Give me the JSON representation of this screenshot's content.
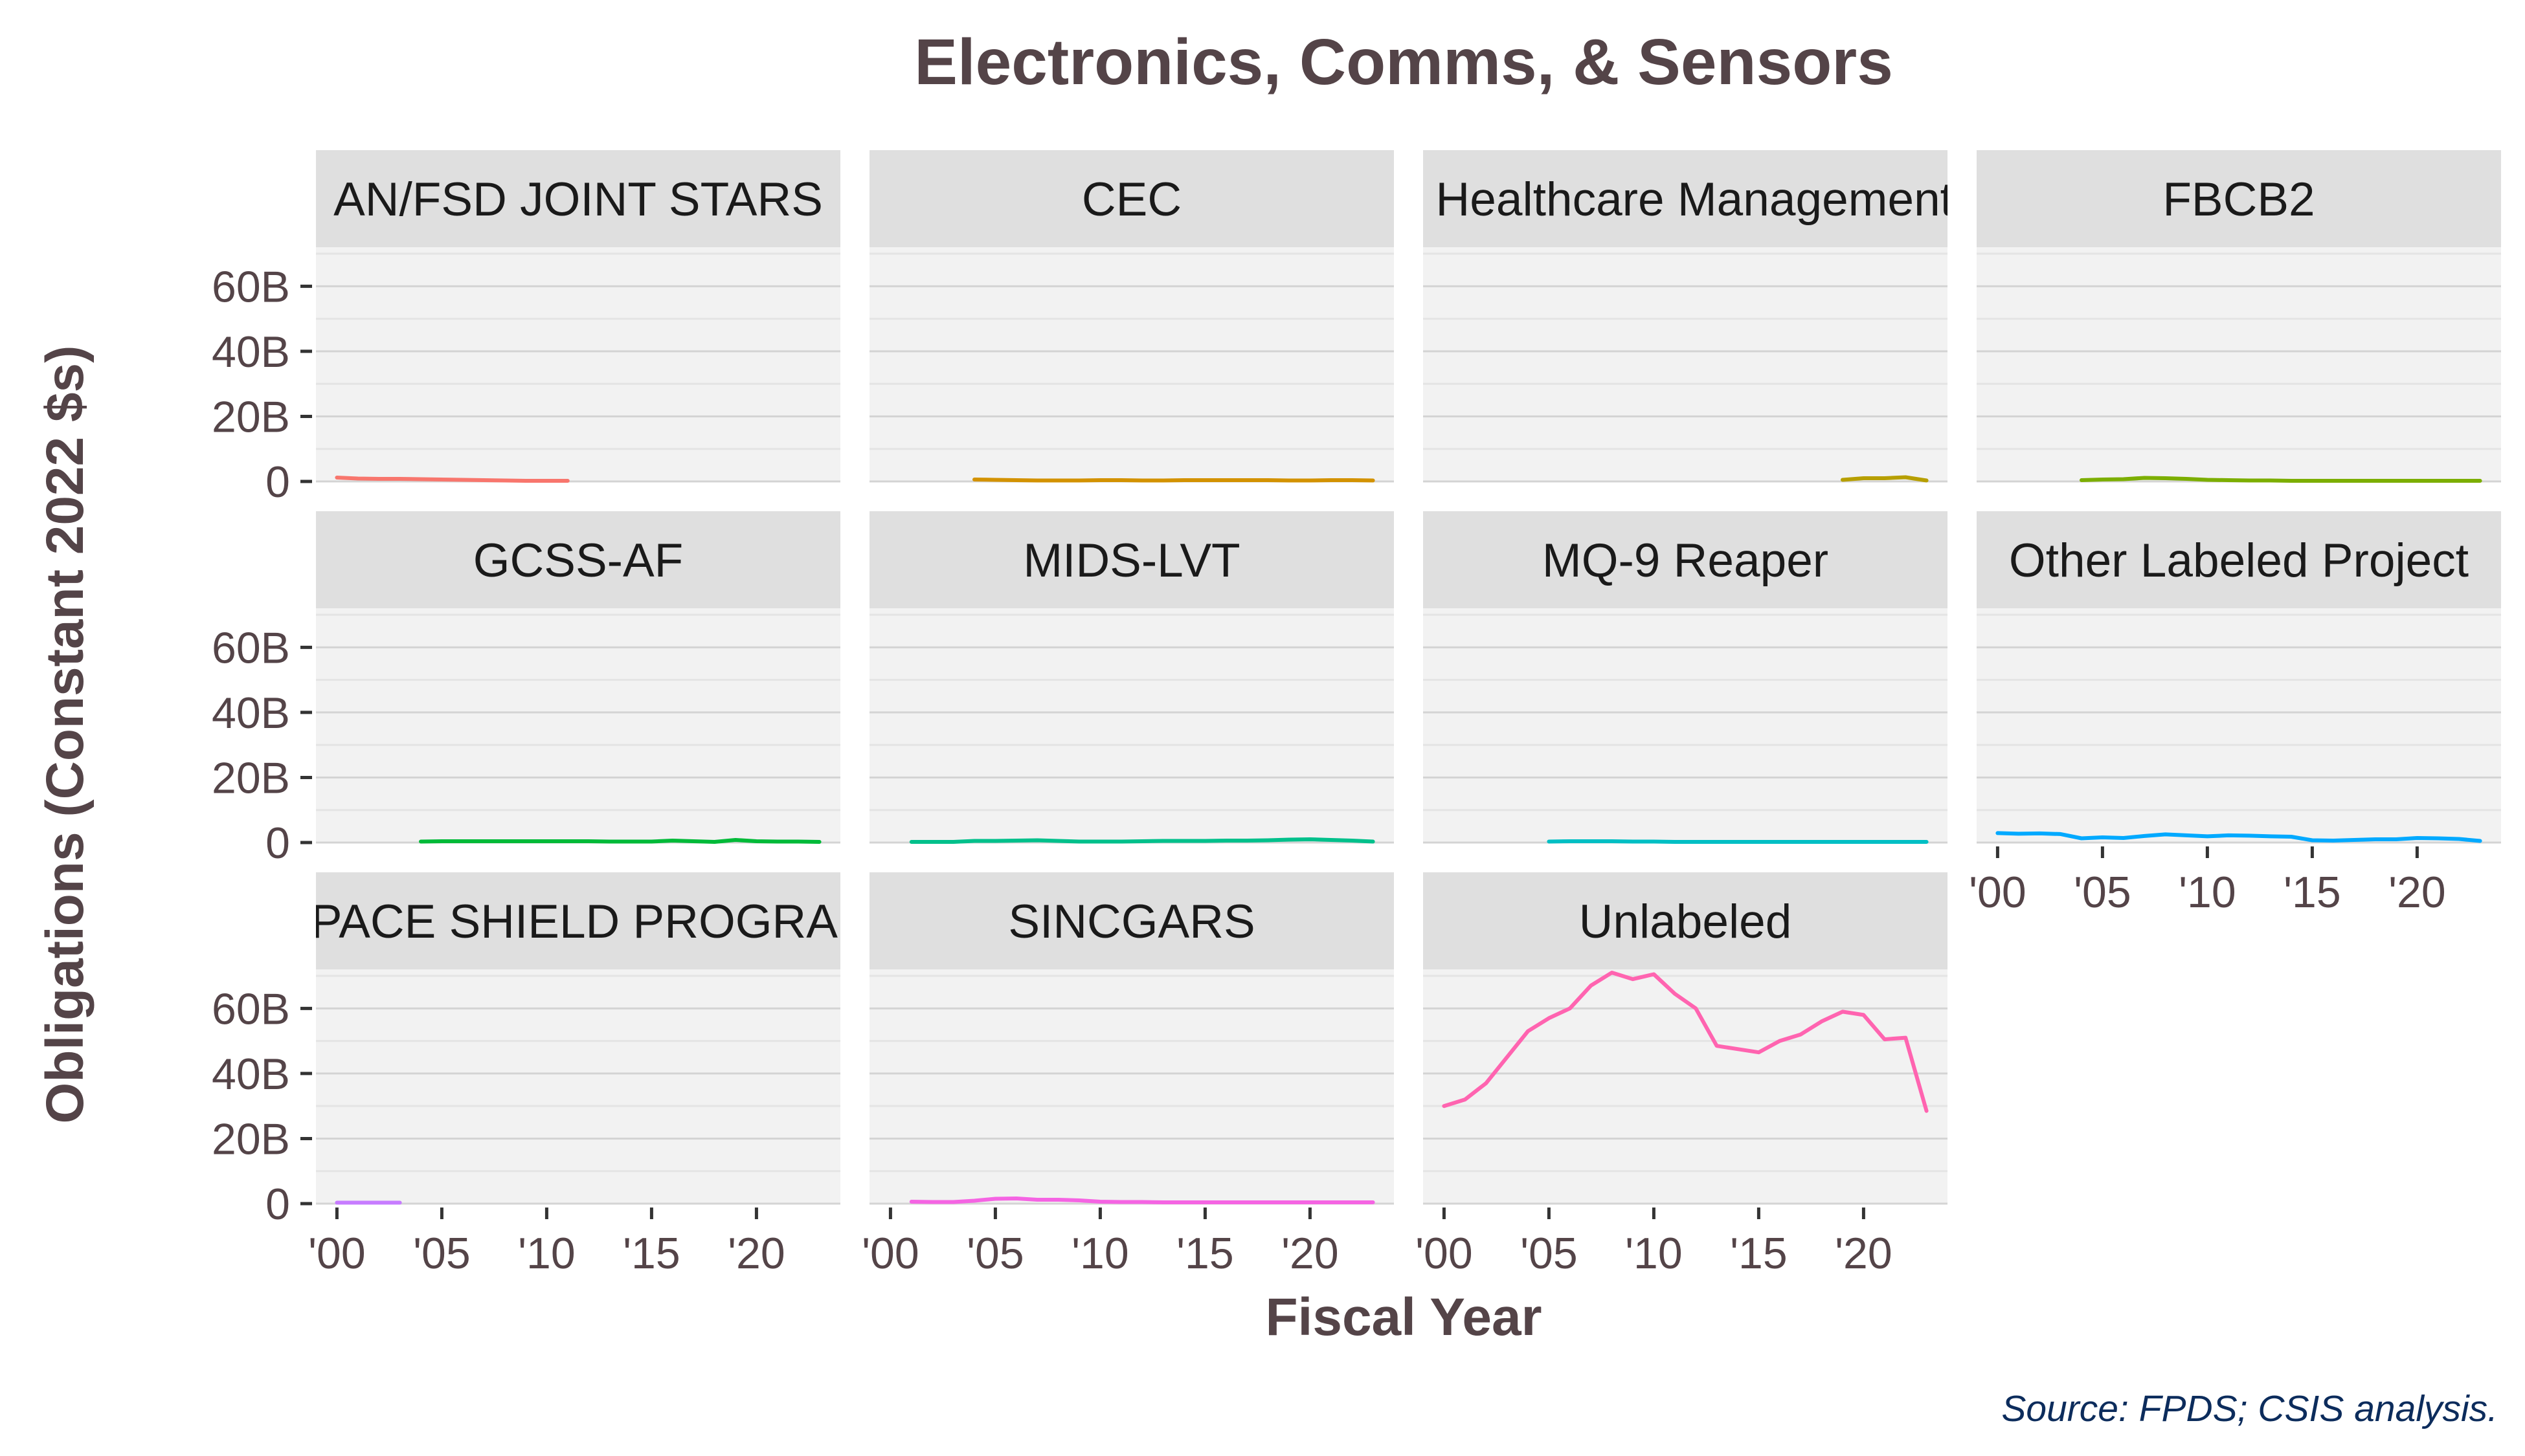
{
  "chart_data": {
    "type": "line",
    "title": "Electronics, Comms, & Sensors",
    "xlabel": "Fiscal Year",
    "ylabel": "Obligations (Constant 2022 $s)",
    "source": "Source: FPDS; CSIS analysis.",
    "xlim": [
      1999,
      2024
    ],
    "ylim": [
      0,
      72
    ],
    "y_ticks": [
      0,
      20,
      40,
      60
    ],
    "y_tick_labels": [
      "0",
      "20B",
      "40B",
      "60B"
    ],
    "x_ticks": [
      2000,
      2005,
      2010,
      2015,
      2020
    ],
    "x_tick_labels": [
      "'00",
      "'05",
      "'10",
      "'15",
      "'20"
    ],
    "layout": "facet-wrap, 4 columns, free x axis",
    "grid": true,
    "legend": "none",
    "panels": [
      {
        "label": "AN/FSD JOINT STARS",
        "color": "#F8766D",
        "x": [
          2000,
          2001,
          2002,
          2003,
          2004,
          2005,
          2006,
          2007,
          2008,
          2009,
          2010,
          2011
        ],
        "y": [
          1.2,
          0.9,
          0.8,
          0.8,
          0.7,
          0.6,
          0.5,
          0.4,
          0.3,
          0.2,
          0.2,
          0.2
        ]
      },
      {
        "label": "CEC",
        "color": "#D39200",
        "x": [
          2004,
          2005,
          2006,
          2007,
          2008,
          2009,
          2010,
          2011,
          2012,
          2013,
          2014,
          2015,
          2016,
          2017,
          2018,
          2019,
          2020,
          2021,
          2022,
          2023
        ],
        "y": [
          0.6,
          0.5,
          0.4,
          0.3,
          0.3,
          0.3,
          0.4,
          0.4,
          0.3,
          0.3,
          0.4,
          0.4,
          0.4,
          0.4,
          0.4,
          0.3,
          0.3,
          0.4,
          0.4,
          0.3
        ]
      },
      {
        "label": "Defense Healthcare Management System",
        "color": "#B79F00",
        "x": [
          2019,
          2020,
          2021,
          2022,
          2023
        ],
        "y": [
          0.5,
          1.0,
          1.0,
          1.3,
          0.3
        ]
      },
      {
        "label": "FBCB2",
        "color": "#7CAE00",
        "x": [
          2004,
          2005,
          2006,
          2007,
          2008,
          2009,
          2010,
          2011,
          2012,
          2013,
          2014,
          2015,
          2016,
          2017,
          2018,
          2019,
          2020,
          2021,
          2022,
          2023
        ],
        "y": [
          0.4,
          0.6,
          0.7,
          1.1,
          1.0,
          0.8,
          0.5,
          0.4,
          0.3,
          0.3,
          0.2,
          0.2,
          0.2,
          0.2,
          0.2,
          0.2,
          0.2,
          0.2,
          0.2,
          0.2
        ]
      },
      {
        "label": "GCSS-AF",
        "color": "#00BA38",
        "x": [
          2004,
          2005,
          2006,
          2007,
          2008,
          2009,
          2010,
          2011,
          2012,
          2013,
          2014,
          2015,
          2016,
          2017,
          2018,
          2019,
          2020,
          2021,
          2022,
          2023
        ],
        "y": [
          0.3,
          0.4,
          0.4,
          0.4,
          0.4,
          0.4,
          0.4,
          0.4,
          0.4,
          0.3,
          0.3,
          0.3,
          0.6,
          0.4,
          0.2,
          0.8,
          0.4,
          0.3,
          0.3,
          0.2
        ]
      },
      {
        "label": "MIDS-LVT",
        "color": "#00C08B",
        "x": [
          2001,
          2002,
          2003,
          2004,
          2005,
          2006,
          2007,
          2008,
          2009,
          2010,
          2011,
          2012,
          2013,
          2014,
          2015,
          2016,
          2017,
          2018,
          2019,
          2020,
          2021,
          2022,
          2023
        ],
        "y": [
          0.2,
          0.2,
          0.2,
          0.5,
          0.5,
          0.6,
          0.7,
          0.5,
          0.3,
          0.3,
          0.3,
          0.4,
          0.5,
          0.5,
          0.5,
          0.6,
          0.6,
          0.7,
          0.9,
          1.0,
          0.8,
          0.6,
          0.3
        ]
      },
      {
        "label": "MQ-9 Reaper",
        "color": "#00BFC4",
        "x": [
          2005,
          2006,
          2007,
          2008,
          2009,
          2010,
          2011,
          2012,
          2013,
          2014,
          2015,
          2016,
          2017,
          2018,
          2019,
          2020,
          2021,
          2022,
          2023
        ],
        "y": [
          0.3,
          0.4,
          0.4,
          0.4,
          0.3,
          0.3,
          0.2,
          0.2,
          0.2,
          0.2,
          0.2,
          0.2,
          0.2,
          0.2,
          0.2,
          0.2,
          0.2,
          0.2,
          0.2
        ]
      },
      {
        "label": "Other Labeled Project",
        "color": "#00A9FF",
        "x": [
          2000,
          2001,
          2002,
          2003,
          2004,
          2005,
          2006,
          2007,
          2008,
          2009,
          2010,
          2011,
          2012,
          2013,
          2014,
          2015,
          2016,
          2017,
          2018,
          2019,
          2020,
          2021,
          2022,
          2023
        ],
        "y": [
          2.9,
          2.7,
          2.8,
          2.6,
          1.3,
          1.6,
          1.4,
          2.0,
          2.5,
          2.2,
          1.9,
          2.2,
          2.1,
          1.9,
          1.8,
          0.7,
          0.6,
          0.8,
          1.0,
          1.0,
          1.4,
          1.3,
          1.1,
          0.5
        ]
      },
      {
        "label": "SPACE SHIELD PROGRAM",
        "color": "#C77CFF",
        "x": [
          2000,
          2001,
          2002,
          2003
        ],
        "y": [
          0.3,
          0.3,
          0.3,
          0.3
        ]
      },
      {
        "label": "SINCGARS",
        "color": "#F564E3",
        "x": [
          2001,
          2002,
          2003,
          2004,
          2005,
          2006,
          2007,
          2008,
          2009,
          2010,
          2011,
          2012,
          2013,
          2014,
          2015,
          2016,
          2017,
          2018,
          2019,
          2020,
          2021,
          2022,
          2023
        ],
        "y": [
          0.6,
          0.5,
          0.5,
          0.9,
          1.5,
          1.6,
          1.2,
          1.2,
          1.0,
          0.6,
          0.5,
          0.5,
          0.4,
          0.4,
          0.4,
          0.4,
          0.4,
          0.4,
          0.4,
          0.4,
          0.4,
          0.4,
          0.4
        ]
      },
      {
        "label": "Unlabeled",
        "color": "#FF64B0",
        "x": [
          2000,
          2001,
          2002,
          2003,
          2004,
          2005,
          2006,
          2007,
          2008,
          2009,
          2010,
          2011,
          2012,
          2013,
          2014,
          2015,
          2016,
          2017,
          2018,
          2019,
          2020,
          2021,
          2022,
          2023
        ],
        "y": [
          30,
          32,
          37,
          45,
          53,
          57,
          60,
          67,
          71,
          69,
          70.5,
          64.5,
          60,
          48.5,
          47.5,
          46.5,
          50,
          52,
          56,
          59,
          58,
          50.5,
          51,
          28.5
        ]
      }
    ]
  }
}
